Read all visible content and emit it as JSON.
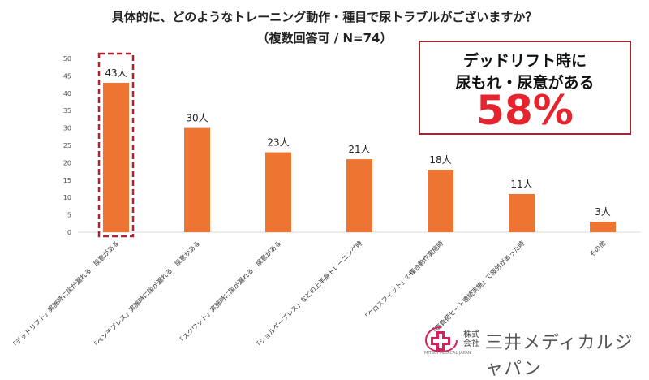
{
  "header": {
    "title": "具体的に、どのようなトレーニング動作・種目で尿トラブルがございますか？",
    "subtitle": "（複数回答可 / N=74）"
  },
  "callout": {
    "line1": "デッドリフト時に",
    "line2": "尿もれ・尿意がある",
    "value": "58%",
    "color": "#e5242f",
    "border_color": "#9b2a33"
  },
  "logo": {
    "kabushiki": "株式",
    "kaisha": "会社",
    "name": "三井メディカルジャパン",
    "sub": "MITSUI MEDICAL JAPAN",
    "accent": "#d6205a"
  },
  "chart_data": {
    "type": "bar",
    "title": "具体的に、どのようなトレーニング動作・種目で尿トラブルがございますか？",
    "ylim": [
      0,
      50
    ],
    "yticks": [
      0,
      5,
      10,
      15,
      20,
      25,
      30,
      35,
      40,
      45,
      50
    ],
    "grid": false,
    "bar_color": "#ed7431",
    "highlight_color": "#b3222c",
    "highlight_index": 0,
    "categories": [
      "「デッドリフト」実施時に尿が漏れる、尿意がある",
      "「ベンチプレス」実施時に尿が漏れる、尿意がある",
      "「スクワット」実施時に尿が漏れる、尿意がある",
      "「ショルダープレス」などの上半身トレーニング時",
      "「クロスフィット」の複合動作実施時",
      "「高負荷セット連続実施」で疲労があった時",
      "その他"
    ],
    "values": [
      43,
      30,
      23,
      21,
      18,
      11,
      3
    ],
    "data_labels": [
      "43人",
      "30人",
      "23人",
      "21人",
      "18人",
      "11人",
      "3人"
    ]
  }
}
